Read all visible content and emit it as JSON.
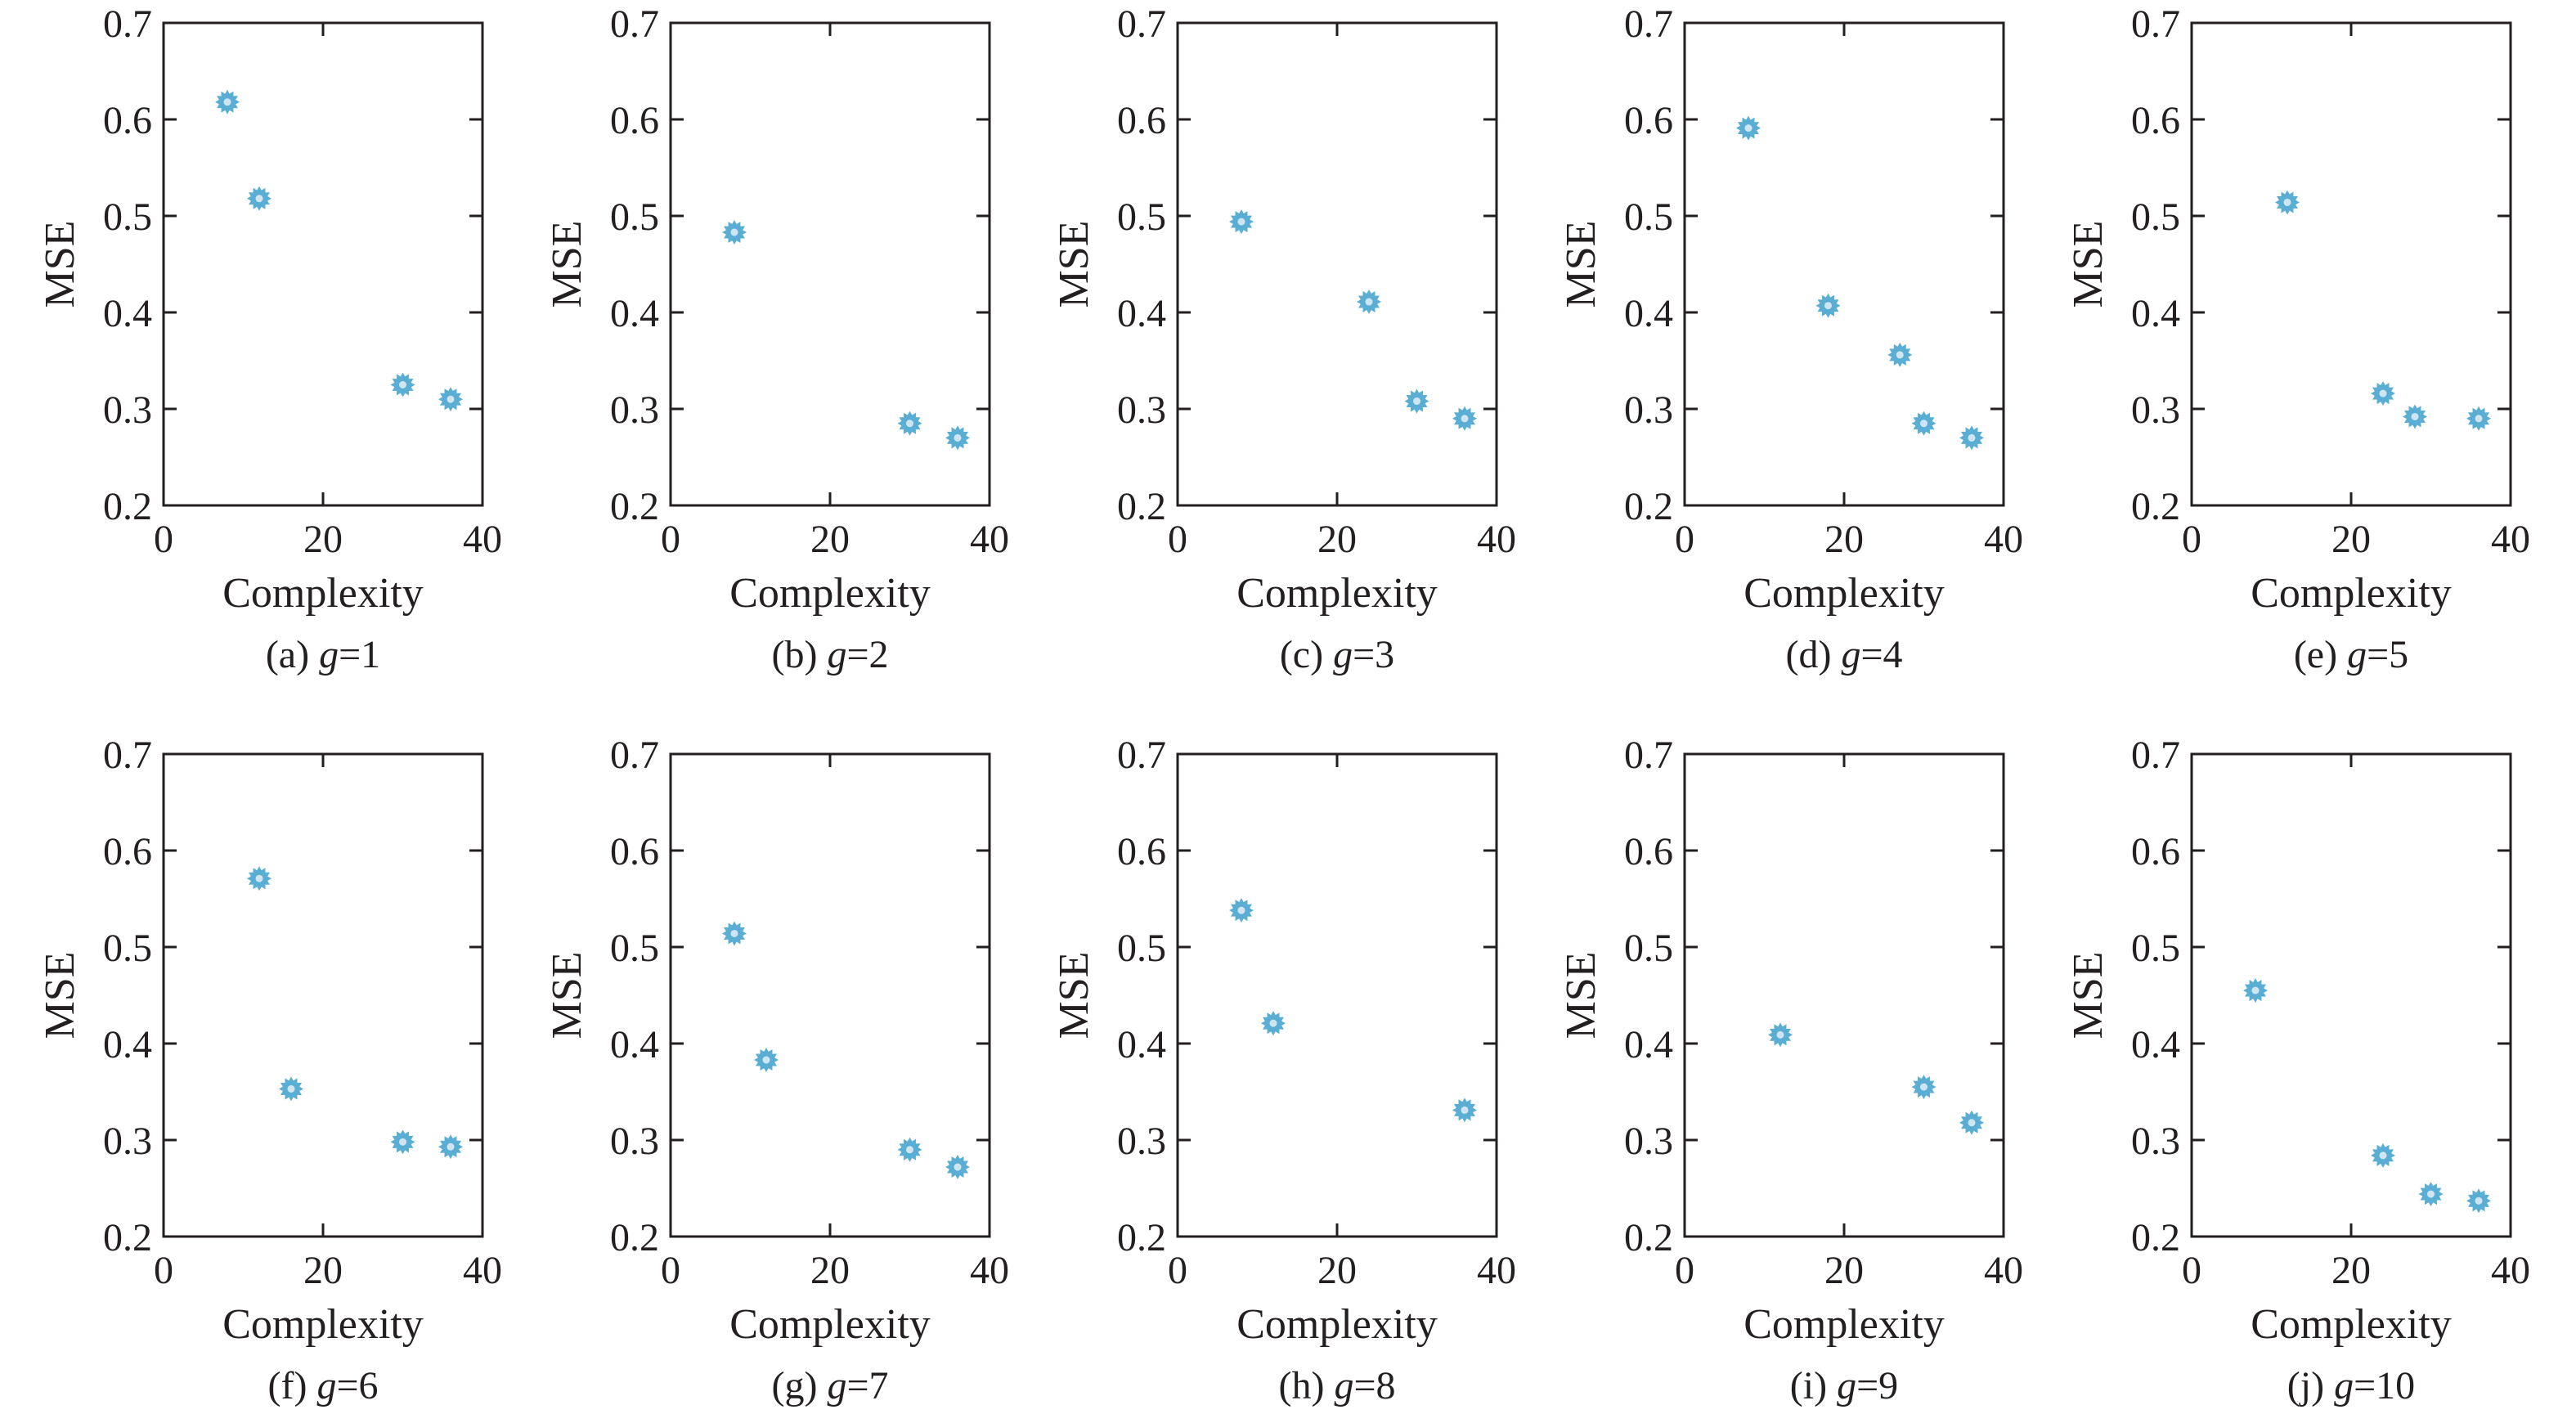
{
  "figure": {
    "marker_color": "#5aaed4",
    "axis_color": "#231f20"
  },
  "chart_data": [
    {
      "type": "scatter",
      "panel_label": "(a) ",
      "param": "g",
      "param_value": "=1",
      "xlabel": "Complexity",
      "ylabel": "MSE",
      "xlim": [
        0,
        40
      ],
      "ylim": [
        0.2,
        0.7
      ],
      "xticks": [
        "0",
        "20",
        "40"
      ],
      "yticks": [
        "0.2",
        "0.3",
        "0.4",
        "0.5",
        "0.6",
        "0.7"
      ],
      "points": [
        {
          "x": 8,
          "y": 0.618
        },
        {
          "x": 12,
          "y": 0.518
        },
        {
          "x": 30,
          "y": 0.325
        },
        {
          "x": 36,
          "y": 0.31
        }
      ]
    },
    {
      "type": "scatter",
      "panel_label": "(b) ",
      "param": "g",
      "param_value": "=2",
      "xlabel": "Complexity",
      "ylabel": "MSE",
      "xlim": [
        0,
        40
      ],
      "ylim": [
        0.2,
        0.7
      ],
      "xticks": [
        "0",
        "20",
        "40"
      ],
      "yticks": [
        "0.2",
        "0.3",
        "0.4",
        "0.5",
        "0.6",
        "0.7"
      ],
      "points": [
        {
          "x": 8,
          "y": 0.483
        },
        {
          "x": 30,
          "y": 0.285
        },
        {
          "x": 36,
          "y": 0.27
        }
      ]
    },
    {
      "type": "scatter",
      "panel_label": "(c) ",
      "param": "g",
      "param_value": "=3",
      "xlabel": "Complexity",
      "ylabel": "MSE",
      "xlim": [
        0,
        40
      ],
      "ylim": [
        0.2,
        0.7
      ],
      "xticks": [
        "0",
        "20",
        "40"
      ],
      "yticks": [
        "0.2",
        "0.3",
        "0.4",
        "0.5",
        "0.6",
        "0.7"
      ],
      "points": [
        {
          "x": 8,
          "y": 0.494
        },
        {
          "x": 24,
          "y": 0.411
        },
        {
          "x": 30,
          "y": 0.308
        },
        {
          "x": 36,
          "y": 0.29
        }
      ]
    },
    {
      "type": "scatter",
      "panel_label": "(d) ",
      "param": "g",
      "param_value": "=4",
      "xlabel": "Complexity",
      "ylabel": "MSE",
      "xlim": [
        0,
        40
      ],
      "ylim": [
        0.2,
        0.7
      ],
      "xticks": [
        "0",
        "20",
        "40"
      ],
      "yticks": [
        "0.2",
        "0.3",
        "0.4",
        "0.5",
        "0.6",
        "0.7"
      ],
      "points": [
        {
          "x": 8,
          "y": 0.591
        },
        {
          "x": 18,
          "y": 0.407
        },
        {
          "x": 27,
          "y": 0.356
        },
        {
          "x": 30,
          "y": 0.285
        },
        {
          "x": 36,
          "y": 0.27
        }
      ]
    },
    {
      "type": "scatter",
      "panel_label": "(e) ",
      "param": "g",
      "param_value": "=5",
      "xlabel": "Complexity",
      "ylabel": "MSE",
      "xlim": [
        0,
        40
      ],
      "ylim": [
        0.2,
        0.7
      ],
      "xticks": [
        "0",
        "20",
        "40"
      ],
      "yticks": [
        "0.2",
        "0.3",
        "0.4",
        "0.5",
        "0.6",
        "0.7"
      ],
      "points": [
        {
          "x": 12,
          "y": 0.514
        },
        {
          "x": 24,
          "y": 0.316
        },
        {
          "x": 28,
          "y": 0.292
        },
        {
          "x": 36,
          "y": 0.29
        }
      ]
    },
    {
      "type": "scatter",
      "panel_label": "(f) ",
      "param": "g",
      "param_value": "=6",
      "xlabel": "Complexity",
      "ylabel": "MSE",
      "xlim": [
        0,
        40
      ],
      "ylim": [
        0.2,
        0.7
      ],
      "xticks": [
        "0",
        "20",
        "40"
      ],
      "yticks": [
        "0.2",
        "0.3",
        "0.4",
        "0.5",
        "0.6",
        "0.7"
      ],
      "points": [
        {
          "x": 12,
          "y": 0.571
        },
        {
          "x": 16,
          "y": 0.353
        },
        {
          "x": 30,
          "y": 0.298
        },
        {
          "x": 36,
          "y": 0.293
        }
      ]
    },
    {
      "type": "scatter",
      "panel_label": "(g) ",
      "param": "g",
      "param_value": "=7",
      "xlabel": "Complexity",
      "ylabel": "MSE",
      "xlim": [
        0,
        40
      ],
      "ylim": [
        0.2,
        0.7
      ],
      "xticks": [
        "0",
        "20",
        "40"
      ],
      "yticks": [
        "0.2",
        "0.3",
        "0.4",
        "0.5",
        "0.6",
        "0.7"
      ],
      "points": [
        {
          "x": 8,
          "y": 0.514
        },
        {
          "x": 12,
          "y": 0.383
        },
        {
          "x": 30,
          "y": 0.29
        },
        {
          "x": 36,
          "y": 0.272
        }
      ]
    },
    {
      "type": "scatter",
      "panel_label": "(h) ",
      "param": "g",
      "param_value": "=8",
      "xlabel": "Complexity",
      "ylabel": "MSE",
      "xlim": [
        0,
        40
      ],
      "ylim": [
        0.2,
        0.7
      ],
      "xticks": [
        "0",
        "20",
        "40"
      ],
      "yticks": [
        "0.2",
        "0.3",
        "0.4",
        "0.5",
        "0.6",
        "0.7"
      ],
      "points": [
        {
          "x": 8,
          "y": 0.538
        },
        {
          "x": 12,
          "y": 0.421
        },
        {
          "x": 36,
          "y": 0.331
        }
      ]
    },
    {
      "type": "scatter",
      "panel_label": "(i) ",
      "param": "g",
      "param_value": "=9",
      "xlabel": "Complexity",
      "ylabel": "MSE",
      "xlim": [
        0,
        40
      ],
      "ylim": [
        0.2,
        0.7
      ],
      "xticks": [
        "0",
        "20",
        "40"
      ],
      "yticks": [
        "0.2",
        "0.3",
        "0.4",
        "0.5",
        "0.6",
        "0.7"
      ],
      "points": [
        {
          "x": 12,
          "y": 0.409
        },
        {
          "x": 30,
          "y": 0.355
        },
        {
          "x": 36,
          "y": 0.318
        }
      ]
    },
    {
      "type": "scatter",
      "panel_label": "(j) ",
      "param": "g",
      "param_value": "=10",
      "xlabel": "Complexity",
      "ylabel": "MSE",
      "xlim": [
        0,
        40
      ],
      "ylim": [
        0.2,
        0.7
      ],
      "xticks": [
        "0",
        "20",
        "40"
      ],
      "yticks": [
        "0.2",
        "0.3",
        "0.4",
        "0.5",
        "0.6",
        "0.7"
      ],
      "points": [
        {
          "x": 8,
          "y": 0.455
        },
        {
          "x": 24,
          "y": 0.284
        },
        {
          "x": 30,
          "y": 0.244
        },
        {
          "x": 36,
          "y": 0.237
        }
      ]
    }
  ]
}
